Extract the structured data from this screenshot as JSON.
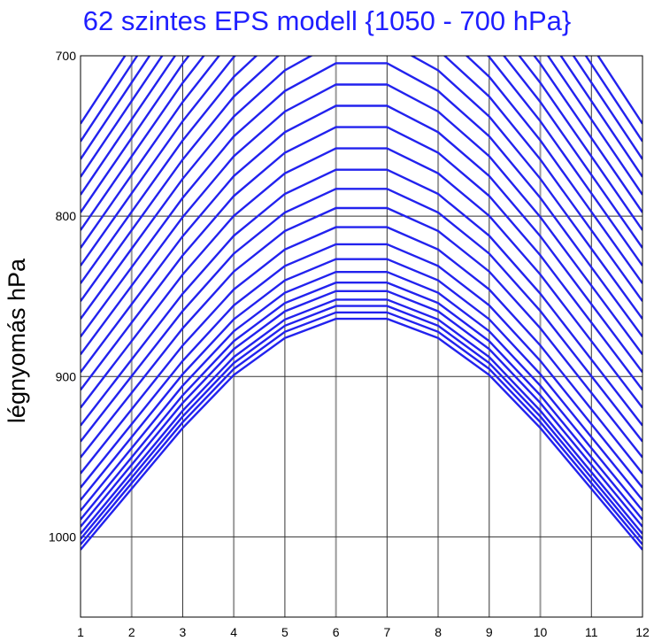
{
  "chart_data": {
    "type": "line",
    "title": "62 szintes EPS modell {1050 - 700 hPa}",
    "xlabel": "",
    "ylabel": "légnyomás hPa",
    "x": [
      1,
      2,
      3,
      4,
      5,
      6,
      7,
      8,
      9,
      10,
      11,
      12
    ],
    "xlim": [
      1,
      12
    ],
    "ylim": [
      1050,
      700
    ],
    "y_inverted": true,
    "yticks": [
      700,
      800,
      900,
      1000
    ],
    "xticks": [
      1,
      2,
      3,
      4,
      5,
      6,
      7,
      8,
      9,
      10,
      11,
      12
    ],
    "grid": true,
    "level_count": 30,
    "ground_pressure": [
      1008,
      970,
      932,
      899,
      876,
      864,
      864,
      876,
      899,
      932,
      970,
      1008
    ],
    "level_base_offsets": [
      0,
      -3,
      -6,
      -9,
      -13,
      -17,
      -22,
      -28,
      -35,
      -43,
      -52,
      -61,
      -70,
      -80,
      -90,
      -100,
      -110,
      -120,
      -130,
      -140,
      -150,
      -160,
      -170,
      -180,
      -190,
      -200,
      -210,
      -220,
      -230,
      -240
    ],
    "level_offset_scale": 1.35,
    "line_color": "#2222ee"
  }
}
